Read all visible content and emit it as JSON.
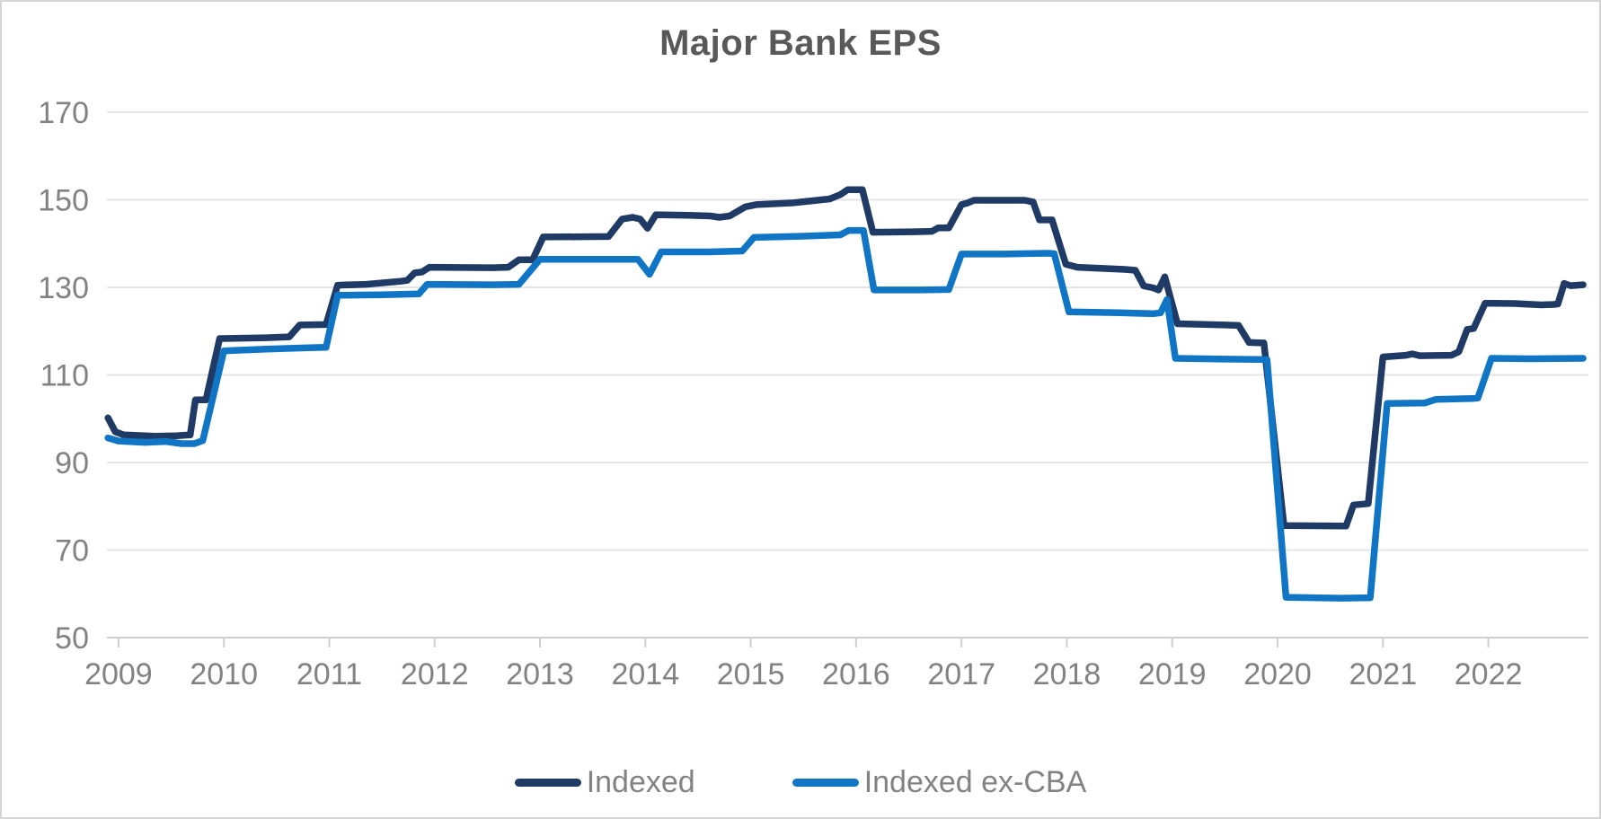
{
  "chart": {
    "title": "Major Bank EPS",
    "colors": {
      "series_indexed": "#1f3a64",
      "series_indexed_ex_cba": "#1075c5",
      "title_text": "#595959",
      "axis_text": "#828282",
      "gridline": "#e4e4e4",
      "axis_line": "#cfcfcf",
      "background": "#ffffff",
      "border": "#d5d5d5"
    }
  },
  "chart_data": {
    "type": "line",
    "title": "Major Bank EPS",
    "xlabel": "",
    "ylabel": "",
    "x_range": [
      2008.89,
      2022.95
    ],
    "y_range": [
      50,
      170
    ],
    "y_ticks": [
      170,
      150,
      130,
      110,
      90,
      70,
      50
    ],
    "x_ticks": [
      2009,
      2010,
      2011,
      2012,
      2013,
      2014,
      2015,
      2016,
      2017,
      2018,
      2019,
      2020,
      2021,
      2022
    ],
    "grid": "horizontal",
    "legend_position": "bottom",
    "line_width": 7.5,
    "series": [
      {
        "name": "Indexed",
        "color": "#1f3a64",
        "points": [
          [
            2008.9,
            100.2
          ],
          [
            2008.97,
            97.0
          ],
          [
            2009.05,
            96.3
          ],
          [
            2009.35,
            96.0
          ],
          [
            2009.55,
            96.1
          ],
          [
            2009.68,
            96.3
          ],
          [
            2009.73,
            104.3
          ],
          [
            2009.83,
            104.3
          ],
          [
            2009.96,
            118.3
          ],
          [
            2010.4,
            118.5
          ],
          [
            2010.62,
            118.7
          ],
          [
            2010.72,
            121.4
          ],
          [
            2010.97,
            121.5
          ],
          [
            2011.08,
            130.5
          ],
          [
            2011.35,
            130.7
          ],
          [
            2011.68,
            131.4
          ],
          [
            2011.74,
            131.6
          ],
          [
            2011.81,
            133.3
          ],
          [
            2011.88,
            133.5
          ],
          [
            2011.95,
            134.6
          ],
          [
            2012.55,
            134.5
          ],
          [
            2012.7,
            134.6
          ],
          [
            2012.8,
            136.3
          ],
          [
            2012.93,
            136.3
          ],
          [
            2013.03,
            141.5
          ],
          [
            2013.65,
            141.6
          ],
          [
            2013.78,
            145.6
          ],
          [
            2013.88,
            146.0
          ],
          [
            2013.95,
            145.6
          ],
          [
            2014.02,
            143.5
          ],
          [
            2014.1,
            146.6
          ],
          [
            2014.35,
            146.5
          ],
          [
            2014.62,
            146.3
          ],
          [
            2014.7,
            146.0
          ],
          [
            2014.8,
            146.3
          ],
          [
            2014.95,
            148.4
          ],
          [
            2015.05,
            148.9
          ],
          [
            2015.4,
            149.3
          ],
          [
            2015.75,
            150.2
          ],
          [
            2015.85,
            151.2
          ],
          [
            2015.92,
            152.3
          ],
          [
            2016.06,
            152.3
          ],
          [
            2016.16,
            142.6
          ],
          [
            2016.55,
            142.7
          ],
          [
            2016.72,
            142.8
          ],
          [
            2016.78,
            143.6
          ],
          [
            2016.88,
            143.6
          ],
          [
            2017.0,
            148.9
          ],
          [
            2017.06,
            149.3
          ],
          [
            2017.12,
            149.9
          ],
          [
            2017.6,
            149.9
          ],
          [
            2017.68,
            149.5
          ],
          [
            2017.74,
            145.4
          ],
          [
            2017.86,
            145.4
          ],
          [
            2017.99,
            135.3
          ],
          [
            2018.1,
            134.6
          ],
          [
            2018.55,
            134.1
          ],
          [
            2018.65,
            133.9
          ],
          [
            2018.73,
            130.3
          ],
          [
            2018.82,
            129.9
          ],
          [
            2018.87,
            129.4
          ],
          [
            2018.93,
            132.4
          ],
          [
            2019.05,
            121.7
          ],
          [
            2019.5,
            121.4
          ],
          [
            2019.63,
            121.3
          ],
          [
            2019.73,
            117.4
          ],
          [
            2019.87,
            117.3
          ],
          [
            2020.06,
            75.6
          ],
          [
            2020.65,
            75.5
          ],
          [
            2020.72,
            80.3
          ],
          [
            2020.86,
            80.6
          ],
          [
            2021.0,
            114.1
          ],
          [
            2021.22,
            114.5
          ],
          [
            2021.28,
            114.8
          ],
          [
            2021.35,
            114.4
          ],
          [
            2021.65,
            114.5
          ],
          [
            2021.72,
            115.3
          ],
          [
            2021.8,
            120.4
          ],
          [
            2021.86,
            120.6
          ],
          [
            2021.97,
            126.4
          ],
          [
            2022.25,
            126.3
          ],
          [
            2022.5,
            126.0
          ],
          [
            2022.62,
            126.1
          ],
          [
            2022.66,
            126.2
          ],
          [
            2022.72,
            130.9
          ],
          [
            2022.78,
            130.4
          ],
          [
            2022.9,
            130.6
          ]
        ]
      },
      {
        "name": "Indexed ex-CBA",
        "color": "#1075c5",
        "points": [
          [
            2008.9,
            95.6
          ],
          [
            2009.0,
            94.9
          ],
          [
            2009.25,
            94.6
          ],
          [
            2009.45,
            94.8
          ],
          [
            2009.6,
            94.3
          ],
          [
            2009.72,
            94.3
          ],
          [
            2009.8,
            95.0
          ],
          [
            2010.0,
            115.5
          ],
          [
            2010.4,
            115.9
          ],
          [
            2010.8,
            116.2
          ],
          [
            2010.97,
            116.3
          ],
          [
            2011.08,
            128.2
          ],
          [
            2011.5,
            128.3
          ],
          [
            2011.85,
            128.5
          ],
          [
            2011.93,
            130.7
          ],
          [
            2012.55,
            130.6
          ],
          [
            2012.8,
            130.7
          ],
          [
            2013.0,
            136.4
          ],
          [
            2013.5,
            136.4
          ],
          [
            2013.93,
            136.4
          ],
          [
            2014.04,
            133.0
          ],
          [
            2014.15,
            138.1
          ],
          [
            2014.6,
            138.1
          ],
          [
            2014.92,
            138.3
          ],
          [
            2015.03,
            141.4
          ],
          [
            2015.5,
            141.7
          ],
          [
            2015.85,
            142.0
          ],
          [
            2015.93,
            143.0
          ],
          [
            2016.07,
            143.0
          ],
          [
            2016.17,
            129.4
          ],
          [
            2016.6,
            129.4
          ],
          [
            2016.88,
            129.5
          ],
          [
            2017.0,
            137.6
          ],
          [
            2017.4,
            137.6
          ],
          [
            2017.82,
            137.8
          ],
          [
            2017.88,
            137.7
          ],
          [
            2018.02,
            124.4
          ],
          [
            2018.5,
            124.2
          ],
          [
            2018.82,
            124.0
          ],
          [
            2018.89,
            124.2
          ],
          [
            2018.95,
            127.2
          ],
          [
            2019.03,
            113.8
          ],
          [
            2019.5,
            113.6
          ],
          [
            2019.9,
            113.5
          ],
          [
            2020.08,
            59.2
          ],
          [
            2020.6,
            59.0
          ],
          [
            2020.88,
            59.1
          ],
          [
            2021.04,
            103.5
          ],
          [
            2021.4,
            103.6
          ],
          [
            2021.5,
            104.4
          ],
          [
            2021.85,
            104.6
          ],
          [
            2021.9,
            104.7
          ],
          [
            2022.03,
            113.8
          ],
          [
            2022.4,
            113.7
          ],
          [
            2022.9,
            113.8
          ]
        ]
      }
    ]
  }
}
